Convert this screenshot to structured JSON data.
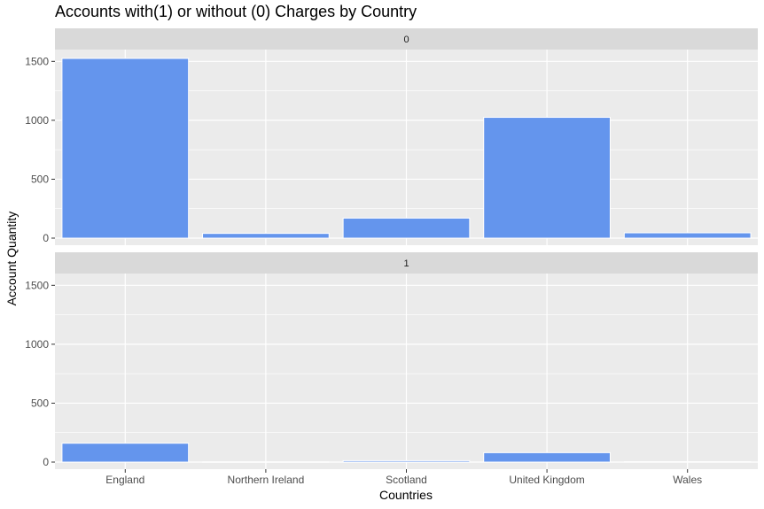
{
  "chart_data": {
    "type": "bar",
    "title": "Accounts with(1) or without (0) Charges by Country",
    "xlabel": "Countries",
    "ylabel": "Account Quantity",
    "categories": [
      "England",
      "Northern Ireland",
      "Scotland",
      "United Kingdom",
      "Wales"
    ],
    "ylim": [
      -60,
      1600
    ],
    "yticks": [
      0,
      500,
      1000,
      1500
    ],
    "grid": true,
    "bar_color": "#6495ED",
    "panel_background": "#EBEBEB",
    "strip_background": "#D9D9D9",
    "facets": [
      {
        "label": "0",
        "values": [
          1525,
          40,
          170,
          1025,
          45
        ]
      },
      {
        "label": "1",
        "values": [
          160,
          2,
          12,
          80,
          3
        ]
      }
    ]
  }
}
